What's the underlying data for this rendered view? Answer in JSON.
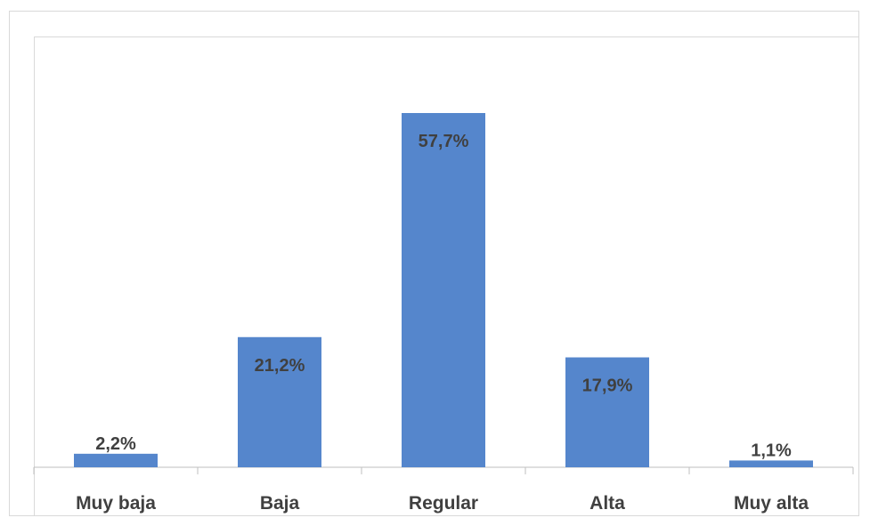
{
  "chart_data": {
    "type": "bar",
    "categories": [
      "Muy baja",
      "Baja",
      "Regular",
      "Alta",
      "Muy alta"
    ],
    "values": [
      2.2,
      21.2,
      57.7,
      17.9,
      1.1
    ],
    "data_labels": [
      "2,2%",
      "21,2%",
      "57,7%",
      "17,9%",
      "1,1%"
    ],
    "title": "",
    "xlabel": "",
    "ylabel": "",
    "ylim": [
      0,
      57.7
    ],
    "grid": false,
    "legend": "none",
    "bar_color": "#5586cc",
    "label_color": "#404040",
    "axis_color": "#bfbfbf"
  }
}
